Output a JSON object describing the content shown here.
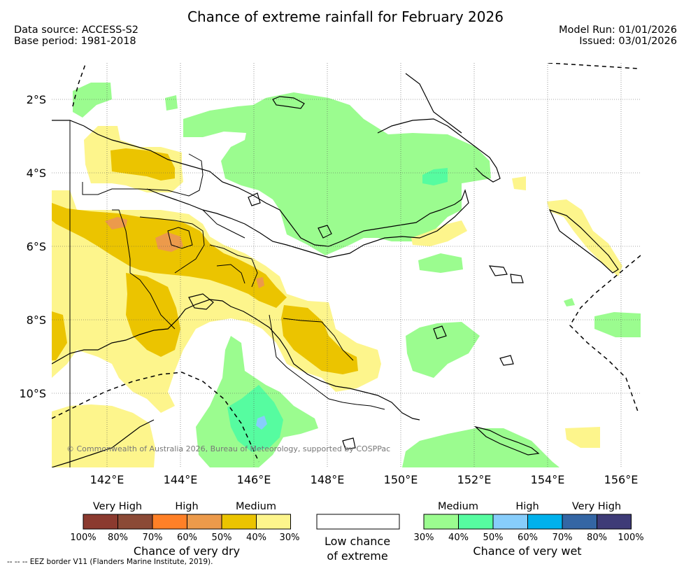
{
  "title": "Chance of extreme rainfall for February 2026",
  "meta": {
    "data_source": "Data source: ACCESS-S2",
    "base_period": "Base period: 1981-2018",
    "model_run": "Model Run: 01/01/2026",
    "issued": "Issued: 03/01/2026"
  },
  "axes": {
    "lat_labels": [
      "2°S",
      "4°S",
      "6°S",
      "8°S",
      "10°S"
    ],
    "lon_labels": [
      "142°E",
      "144°E",
      "146°E",
      "148°E",
      "150°E",
      "152°E",
      "154°E",
      "156°E"
    ]
  },
  "credit": "© Commonwealth of Australia 2026, Bureau of Meteorology, supported by COSPPac",
  "colors": {
    "dry_very_high_1": "#8b3a2f",
    "dry_very_high_2": "#8b4a36",
    "dry_high_1": "#ff8027",
    "dry_high_2": "#ec9a4b",
    "dry_medium_1": "#ebc400",
    "dry_medium_2": "#fdf58c",
    "wet_medium_1": "#9bfc8f",
    "wet_medium_2": "#56fca0",
    "wet_high_1": "#87cdfb",
    "wet_high_2": "#00b1ec",
    "wet_very_high_1": "#3466a4",
    "wet_very_high_2": "#3e3b77"
  },
  "legend": {
    "dry": {
      "headers": [
        "Very High",
        "High",
        "Medium"
      ],
      "ticks": [
        "100%",
        "80%",
        "70%",
        "60%",
        "50%",
        "40%",
        "30%"
      ],
      "caption": "Chance of very dry"
    },
    "low": {
      "caption_line1": "Low chance",
      "caption_line2": "of extreme"
    },
    "wet": {
      "headers": [
        "Medium",
        "High",
        "Very High"
      ],
      "ticks": [
        "30%",
        "40%",
        "50%",
        "60%",
        "70%",
        "80%",
        "100%"
      ],
      "caption": "Chance of very wet"
    }
  },
  "footer": "-- -- -- EEZ border V11 (Flanders Marine Institute, 2019)."
}
